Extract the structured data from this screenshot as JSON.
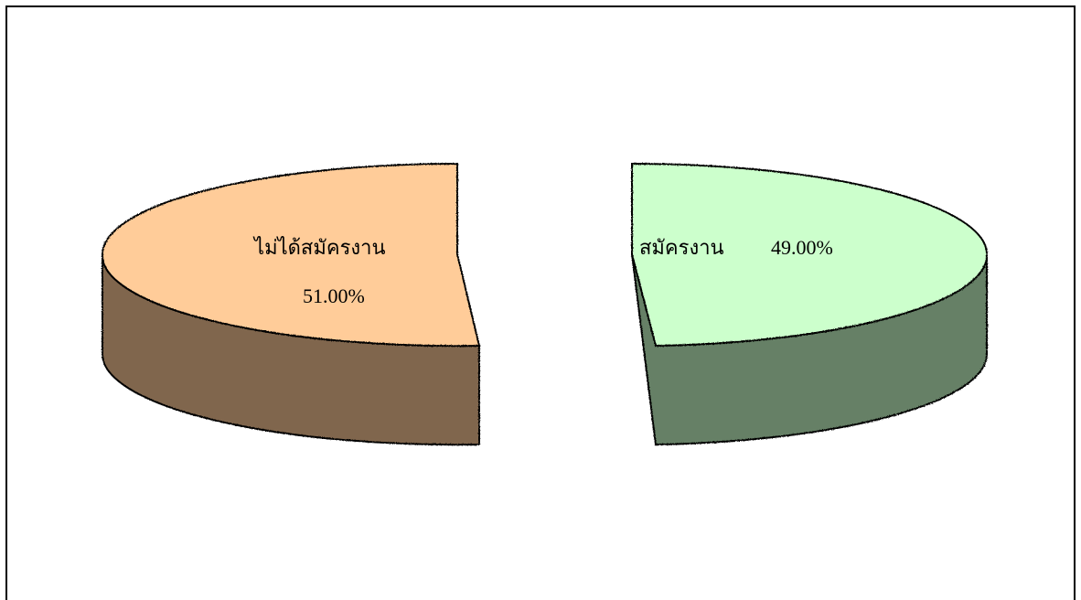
{
  "chart_data": {
    "type": "pie",
    "style": "3d-exploded",
    "slices": [
      {
        "label": "ไม่ได้สมัครงาน",
        "value": 51.0,
        "value_text": "51.00%",
        "top_color": "#FFCC99",
        "side_color": "#80664D"
      },
      {
        "label": "สมัครงาน",
        "value": 49.0,
        "value_text": "49.00%",
        "top_color": "#CCFFCC",
        "side_color": "#668066"
      }
    ],
    "legend": "none",
    "grid": false
  }
}
